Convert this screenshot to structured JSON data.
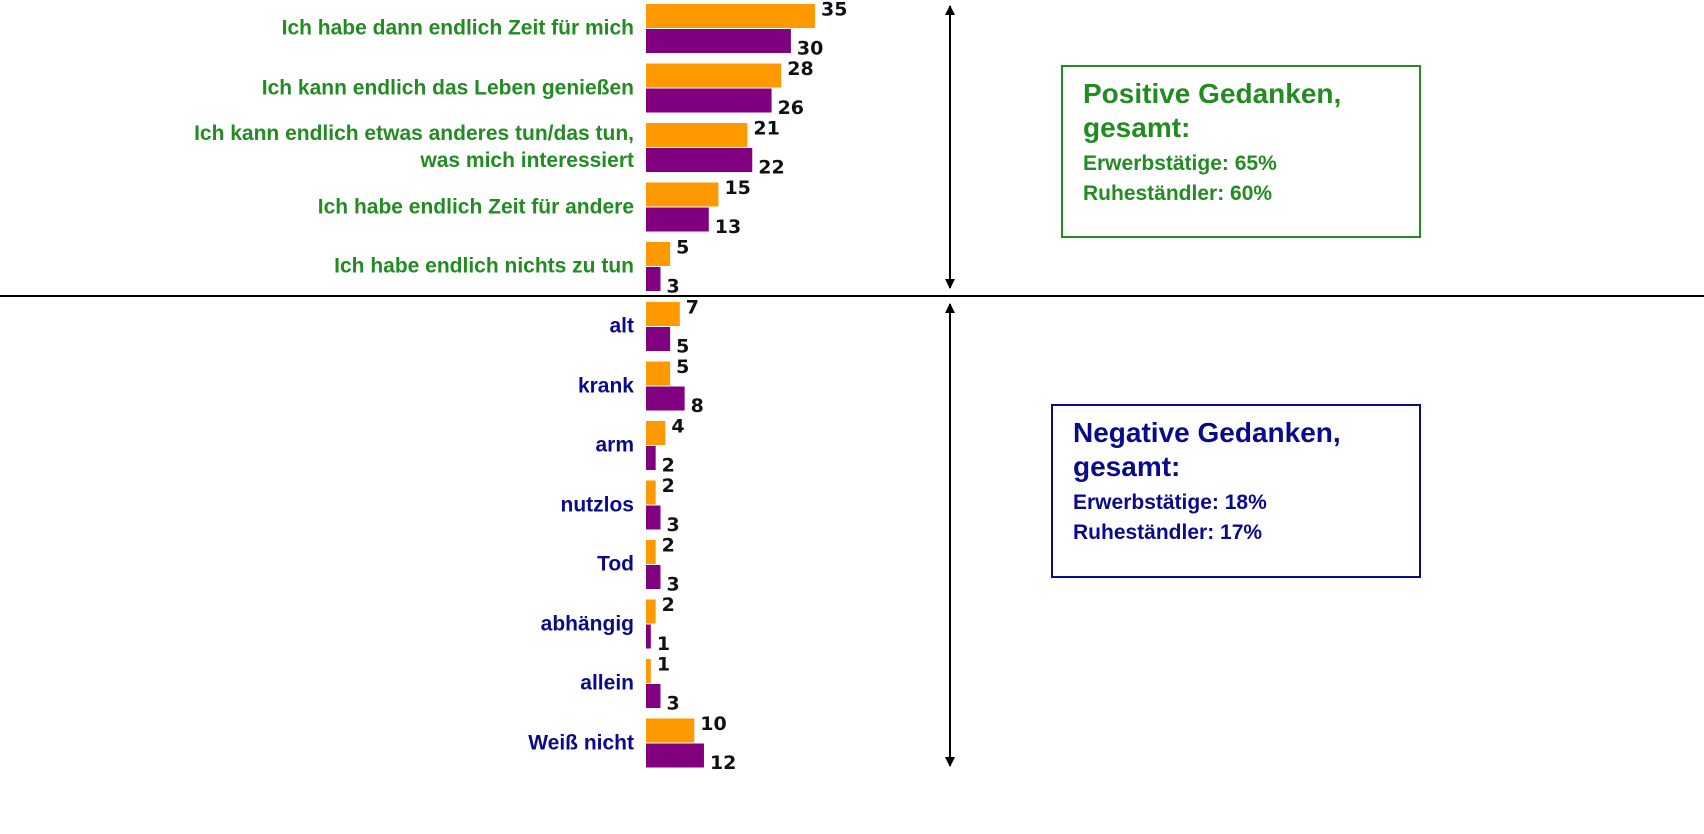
{
  "chart_data": {
    "type": "bar",
    "orientation": "horizontal",
    "categories": [
      "Ich habe dann endlich Zeit für mich",
      "Ich kann endlich das Leben genießen",
      "Ich kann endlich etwas anderes tun/das tun,\nwas mich interessiert",
      "Ich habe endlich Zeit für andere",
      "Ich habe endlich nichts zu tun",
      "alt",
      "krank",
      "arm",
      "nutzlos",
      "Tod",
      "abhängig",
      "allein",
      "Weiß nicht"
    ],
    "label_colors": [
      "#228b22",
      "#228b22",
      "#228b22",
      "#228b22",
      "#228b22",
      "#0a0a8c",
      "#0a0a8c",
      "#0a0a8c",
      "#0a0a8c",
      "#0a0a8c",
      "#0a0a8c",
      "#0a0a8c",
      "#0a0a8c"
    ],
    "series": [
      {
        "color": "#ff9900",
        "values": [
          35,
          28,
          21,
          15,
          5,
          7,
          5,
          4,
          2,
          2,
          2,
          1,
          10
        ]
      },
      {
        "color": "#800080",
        "values": [
          30,
          26,
          22,
          13,
          3,
          5,
          8,
          2,
          3,
          3,
          1,
          3,
          12
        ]
      }
    ],
    "annotations": [
      {
        "title": "Positive Gedanken,\ngesamt:",
        "lines": [
          "Erwerbstätige: 65%",
          "Ruheständler: 60%"
        ],
        "color": "#228b22"
      },
      {
        "title": "Negative Gedanken,\ngesamt:",
        "lines": [
          "Erwerbstätige: 18%",
          "Ruheständler: 17%"
        ],
        "color": "#0a0a8c"
      }
    ]
  }
}
